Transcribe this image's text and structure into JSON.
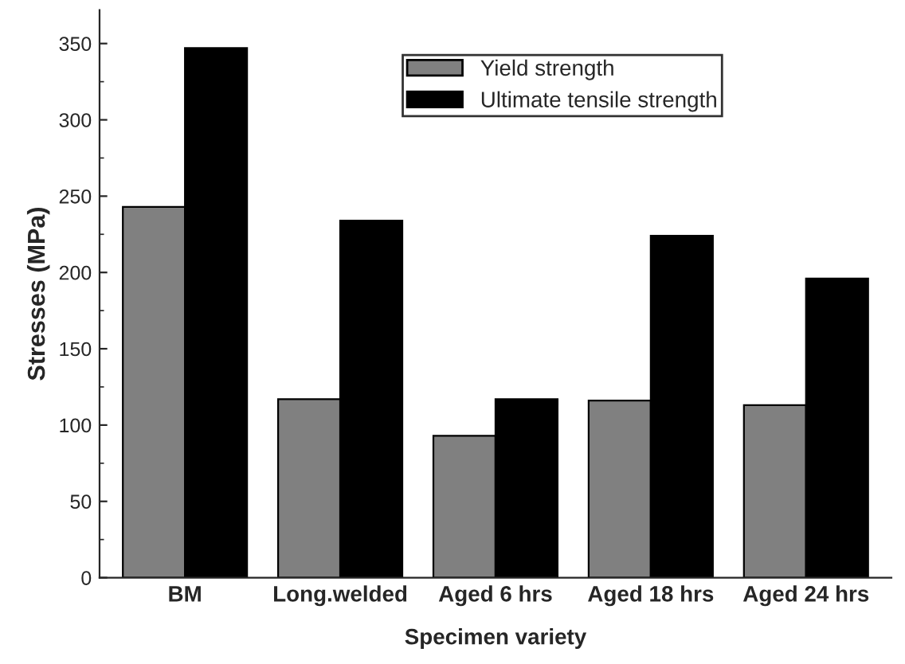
{
  "chart_data": {
    "type": "bar",
    "xlabel": "Specimen variety",
    "ylabel": "Stresses (MPa)",
    "categories": [
      "BM",
      "Long.welded",
      "Aged 6 hrs",
      "Aged 18 hrs",
      "Aged 24 hrs"
    ],
    "series": [
      {
        "name": "Yield strength",
        "color": "#808080",
        "values": [
          243,
          117,
          93,
          116,
          113
        ]
      },
      {
        "name": "Ultimate tensile strength",
        "color": "#000000",
        "values": [
          347,
          234,
          117,
          224,
          196
        ]
      }
    ],
    "ylim": [
      0,
      372
    ],
    "yticks": [
      0,
      50,
      100,
      150,
      200,
      250,
      300,
      350
    ],
    "grid": false,
    "legend": "top right"
  }
}
